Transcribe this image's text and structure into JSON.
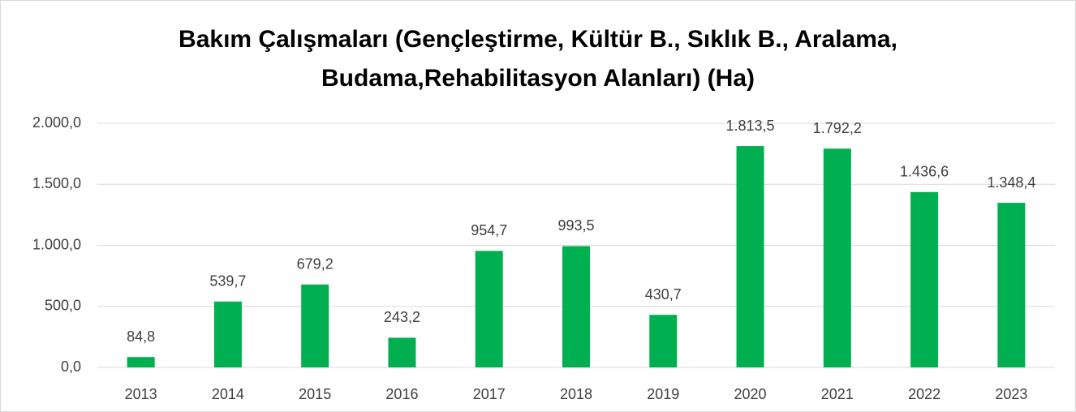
{
  "chart_data": {
    "type": "bar",
    "title": [
      "Bakım Çalışmaları (Gençleştirme, Kültür B., Sıklık B., Aralama,",
      "Budama,Rehabilitasyon Alanları) (Ha)"
    ],
    "categories": [
      "2013",
      "2014",
      "2015",
      "2016",
      "2017",
      "2018",
      "2019",
      "2020",
      "2021",
      "2022",
      "2023"
    ],
    "values": [
      84.8,
      539.7,
      679.2,
      243.2,
      954.7,
      993.5,
      430.7,
      1813.5,
      1792.2,
      1436.6,
      1348.4
    ],
    "value_labels": [
      "84,8",
      "539,7",
      "679,2",
      "243,2",
      "954,7",
      "993,5",
      "430,7",
      "1.813,5",
      "1.792,2",
      "1.436,6",
      "1.348,4"
    ],
    "color": "#00b050",
    "ylim": [
      0,
      2000
    ],
    "yticks": [
      {
        "value": 0,
        "label": "0,0"
      },
      {
        "value": 500,
        "label": "500,0"
      },
      {
        "value": 1000,
        "label": "1.000,0"
      },
      {
        "value": 1500,
        "label": "1.500,0"
      },
      {
        "value": 2000,
        "label": "2.000,0"
      }
    ],
    "grid": true
  }
}
